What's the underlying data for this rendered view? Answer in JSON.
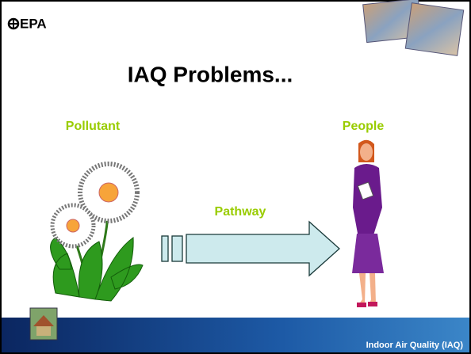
{
  "logo": "EPA",
  "title": "IAQ Problems...",
  "labels": {
    "pollutant": "Pollutant",
    "people": "People",
    "pathway": "Pathway"
  },
  "footer": "Indoor Air Quality (IAQ)"
}
